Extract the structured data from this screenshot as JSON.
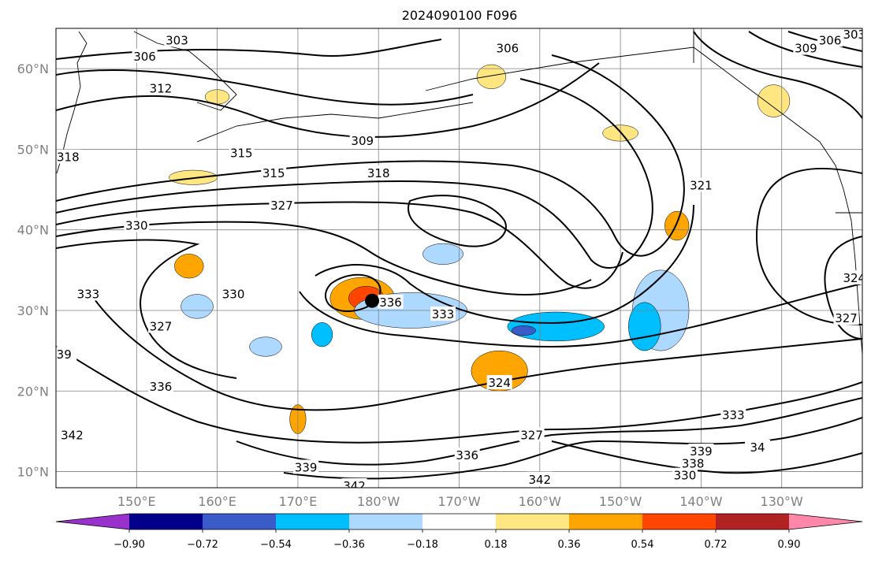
{
  "chart_data": {
    "type": "contour-map",
    "title": "2024090100 F096",
    "xlim": [
      140,
      240
    ],
    "ylim": [
      8,
      65
    ],
    "x_ticks": [
      {
        "value": 150,
        "label": "150°E"
      },
      {
        "value": 160,
        "label": "160°E"
      },
      {
        "value": 170,
        "label": "170°E"
      },
      {
        "value": 180,
        "label": "180°W"
      },
      {
        "value": 190,
        "label": "170°W"
      },
      {
        "value": 200,
        "label": "160°W"
      },
      {
        "value": 210,
        "label": "150°W"
      },
      {
        "value": 220,
        "label": "140°W"
      },
      {
        "value": 230,
        "label": "130°W"
      }
    ],
    "y_ticks": [
      {
        "value": 10,
        "label": "10°N"
      },
      {
        "value": 20,
        "label": "20°N"
      },
      {
        "value": 30,
        "label": "30°N"
      },
      {
        "value": 40,
        "label": "40°N"
      },
      {
        "value": 50,
        "label": "50°N"
      },
      {
        "value": 60,
        "label": "60°N"
      }
    ],
    "grid": true,
    "colorbar": {
      "orientation": "horizontal",
      "extend": "both",
      "boundaries": [
        -1.08,
        -0.9,
        -0.72,
        -0.54,
        -0.36,
        -0.18,
        0.18,
        0.36,
        0.54,
        0.72,
        0.9,
        1.08
      ],
      "tick_values": [
        -0.9,
        -0.72,
        -0.54,
        -0.36,
        -0.18,
        0.18,
        0.36,
        0.54,
        0.72,
        0.9
      ],
      "tick_labels": [
        "−0.90",
        "−0.72",
        "−0.54",
        "−0.36",
        "−0.18",
        "0.18",
        "0.36",
        "0.54",
        "0.72",
        "0.90"
      ],
      "colors": [
        "#9932cc",
        "#00008b",
        "#3a5bc8",
        "#00bfff",
        "#add8ff",
        "#ffffff",
        "#ffe680",
        "#ffa500",
        "#ff4500",
        "#b22222",
        "#ff88aa"
      ],
      "under_color": "#9932cc",
      "over_color": "#ff88aa"
    },
    "contour_labels": [
      {
        "lon": 155,
        "lat": 63.5,
        "text": "303"
      },
      {
        "lon": 151,
        "lat": 61.5,
        "text": "306"
      },
      {
        "lon": 153,
        "lat": 57.5,
        "text": "312"
      },
      {
        "lon": 163,
        "lat": 49.5,
        "text": "315"
      },
      {
        "lon": 167,
        "lat": 47.0,
        "text": "315"
      },
      {
        "lon": 178,
        "lat": 51.0,
        "text": "309"
      },
      {
        "lon": 180,
        "lat": 47.0,
        "text": "318"
      },
      {
        "lon": 168,
        "lat": 43.0,
        "text": "327"
      },
      {
        "lon": 150,
        "lat": 40.5,
        "text": "330"
      },
      {
        "lon": 162,
        "lat": 32.0,
        "text": "330"
      },
      {
        "lon": 144,
        "lat": 32.0,
        "text": "333"
      },
      {
        "lon": 153,
        "lat": 28.0,
        "text": "327"
      },
      {
        "lon": 141,
        "lat": 24.5,
        "text": "39"
      },
      {
        "lon": 153,
        "lat": 20.5,
        "text": "336"
      },
      {
        "lon": 142,
        "lat": 14.5,
        "text": "342"
      },
      {
        "lon": 181.5,
        "lat": 31.0,
        "text": "336"
      },
      {
        "lon": 188,
        "lat": 29.5,
        "text": "333"
      },
      {
        "lon": 195,
        "lat": 21.0,
        "text": "324"
      },
      {
        "lon": 199,
        "lat": 14.5,
        "text": "327"
      },
      {
        "lon": 191,
        "lat": 12.0,
        "text": "336"
      },
      {
        "lon": 171,
        "lat": 10.5,
        "text": "339"
      },
      {
        "lon": 177,
        "lat": 8.2,
        "text": "342"
      },
      {
        "lon": 200,
        "lat": 9.0,
        "text": "342"
      },
      {
        "lon": 218,
        "lat": 9.5,
        "text": "330"
      },
      {
        "lon": 219,
        "lat": 11.0,
        "text": "338"
      },
      {
        "lon": 220,
        "lat": 12.5,
        "text": "339"
      },
      {
        "lon": 227,
        "lat": 13.0,
        "text": "34"
      },
      {
        "lon": 224,
        "lat": 17.0,
        "text": "333"
      },
      {
        "lon": 238,
        "lat": 29.0,
        "text": "327"
      },
      {
        "lon": 239,
        "lat": 34.0,
        "text": "324"
      },
      {
        "lon": 220,
        "lat": 45.5,
        "text": "321"
      },
      {
        "lon": 196,
        "lat": 62.5,
        "text": "306"
      },
      {
        "lon": 233,
        "lat": 62.5,
        "text": "309"
      },
      {
        "lon": 236,
        "lat": 63.5,
        "text": "306"
      },
      {
        "lon": 239,
        "lat": 64.2,
        "text": "303"
      },
      {
        "lon": 141.5,
        "lat": 49.0,
        "text": "318"
      }
    ],
    "markers": [
      {
        "lon": 179.2,
        "lat": 31.2,
        "shape": "filled-circle",
        "color": "#000000"
      }
    ],
    "shading_regions": [
      {
        "lon": 178,
        "lat": 31.5,
        "rx": 4.0,
        "ry": 2.6,
        "color": "#ffa500"
      },
      {
        "lon": 178.5,
        "lat": 31.5,
        "rx": 2.2,
        "ry": 1.5,
        "color": "#ff4500"
      },
      {
        "lon": 156.5,
        "lat": 35.5,
        "rx": 1.8,
        "ry": 1.5,
        "color": "#ffa500"
      },
      {
        "lon": 195,
        "lat": 22.5,
        "rx": 3.5,
        "ry": 2.5,
        "color": "#ffa500"
      },
      {
        "lon": 170,
        "lat": 16.5,
        "rx": 1.0,
        "ry": 1.8,
        "color": "#ffa500"
      },
      {
        "lon": 217,
        "lat": 40.5,
        "rx": 1.5,
        "ry": 1.8,
        "color": "#ffa500"
      },
      {
        "lon": 194,
        "lat": 59,
        "rx": 1.8,
        "ry": 1.5,
        "color": "#ffe680"
      },
      {
        "lon": 210,
        "lat": 52,
        "rx": 2.2,
        "ry": 1.0,
        "color": "#ffe680"
      },
      {
        "lon": 229,
        "lat": 56,
        "rx": 2.0,
        "ry": 2.0,
        "color": "#ffe680"
      },
      {
        "lon": 157,
        "lat": 46.5,
        "rx": 3.0,
        "ry": 0.9,
        "color": "#ffe680"
      },
      {
        "lon": 160,
        "lat": 56.5,
        "rx": 1.5,
        "ry": 0.9,
        "color": "#ffe680"
      },
      {
        "lon": 184,
        "lat": 30,
        "rx": 7.0,
        "ry": 2.2,
        "color": "#add8ff"
      },
      {
        "lon": 202,
        "lat": 28,
        "rx": 6.0,
        "ry": 1.8,
        "color": "#00bfff"
      },
      {
        "lon": 215,
        "lat": 30,
        "rx": 3.5,
        "ry": 5.0,
        "color": "#add8ff"
      },
      {
        "lon": 213,
        "lat": 28,
        "rx": 2.0,
        "ry": 3.0,
        "color": "#00bfff"
      },
      {
        "lon": 157.5,
        "lat": 30.5,
        "rx": 2.0,
        "ry": 1.5,
        "color": "#add8ff"
      },
      {
        "lon": 173,
        "lat": 27,
        "rx": 1.3,
        "ry": 1.5,
        "color": "#00bfff"
      },
      {
        "lon": 166,
        "lat": 25.5,
        "rx": 2.0,
        "ry": 1.2,
        "color": "#add8ff"
      },
      {
        "lon": 188,
        "lat": 37,
        "rx": 2.5,
        "ry": 1.3,
        "color": "#add8ff"
      },
      {
        "lon": 198,
        "lat": 27.5,
        "rx": 1.5,
        "ry": 0.6,
        "color": "#3a5bc8"
      }
    ]
  }
}
